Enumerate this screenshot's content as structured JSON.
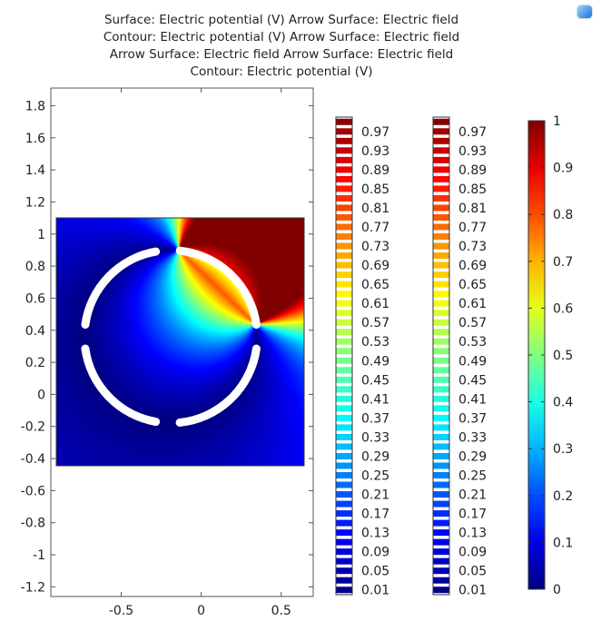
{
  "title_lines": [
    "Surface: Electric potential (V)  Arrow Surface: Electric field",
    "Contour: Electric potential (V)  Arrow Surface: Electric field",
    "Arrow Surface: Electric field  Arrow Surface: Electric field",
    "Contour: Electric potential (V)"
  ],
  "chart_data": {
    "type": "heatmap",
    "colormap": "rainbow (jet)",
    "xlim": [
      -0.94,
      0.7
    ],
    "ylim": [
      -1.26,
      1.91
    ],
    "x_ticks": [
      "-0.5",
      "0",
      "0.5"
    ],
    "x_tick_values": [
      -0.5,
      0,
      0.5
    ],
    "y_ticks": [
      "1.8",
      "1.6",
      "1.4",
      "1.2",
      "1",
      "0.8",
      "0.6",
      "0.4",
      "0.2",
      "0",
      "-0.2",
      "-0.4",
      "-0.6",
      "-0.8",
      "-1",
      "-1.2"
    ],
    "y_tick_values": [
      1.8,
      1.6,
      1.4,
      1.2,
      1,
      0.8,
      0.6,
      0.4,
      0.2,
      0,
      -0.2,
      -0.4,
      -0.6,
      -0.8,
      -1,
      -1.2
    ],
    "domain": {
      "x": [
        -0.9,
        0.65
      ],
      "y": [
        -0.45,
        1.1
      ]
    },
    "electrodes": {
      "center": [
        -0.19,
        0.36
      ],
      "radius": 0.54,
      "high_potential_arc_deg": [
        8,
        84
      ],
      "arcs_deg": [
        [
          8,
          84
        ],
        [
          100,
          172
        ],
        [
          188,
          260
        ],
        [
          276,
          352
        ]
      ]
    },
    "value_range": [
      0,
      1
    ],
    "contour_legend_labels": [
      "0.97",
      "0.93",
      "0.89",
      "0.85",
      "0.81",
      "0.77",
      "0.73",
      "0.69",
      "0.65",
      "0.61",
      "0.57",
      "0.53",
      "0.49",
      "0.45",
      "0.41",
      "0.37",
      "0.33",
      "0.29",
      "0.25",
      "0.21",
      "0.17",
      "0.13",
      "0.09",
      "0.05",
      "0.01"
    ],
    "contour_levels_step": 0.02,
    "colorbar_labels": [
      "1",
      "0.9",
      "0.8",
      "0.7",
      "0.6",
      "0.5",
      "0.4",
      "0.3",
      "0.2",
      "0.1",
      "0"
    ]
  }
}
